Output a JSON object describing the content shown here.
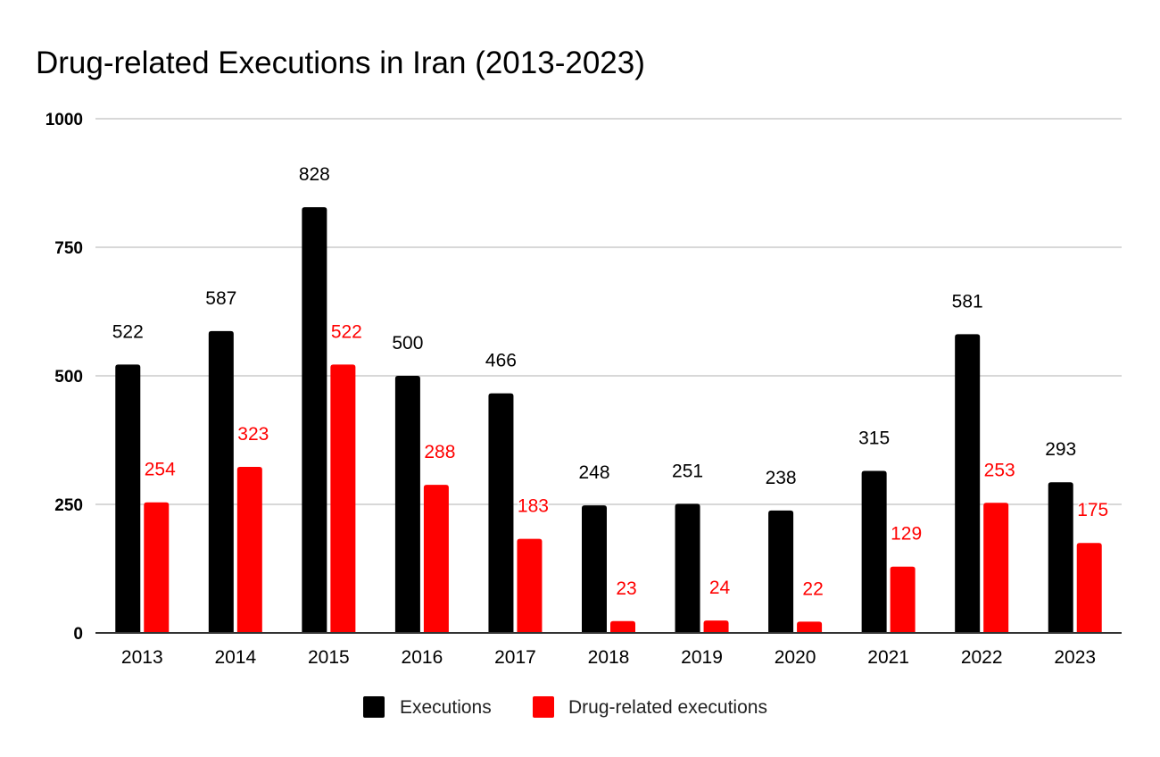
{
  "chart_data": {
    "type": "bar",
    "title": "Drug-related Executions in Iran (2013-2023)",
    "xlabel": "",
    "ylabel": "",
    "ylim": [
      0,
      1000
    ],
    "yticks": [
      "0",
      "250",
      "500",
      "750",
      "1000"
    ],
    "ytick_values": [
      0,
      250,
      500,
      750,
      1000
    ],
    "grid": true,
    "legend_position": "bottom",
    "categories": [
      "2013",
      "2014",
      "2015",
      "2016",
      "2017",
      "2018",
      "2019",
      "2020",
      "2021",
      "2022",
      "2023"
    ],
    "series": [
      {
        "name": "Executions",
        "color": "#000000",
        "values": [
          522,
          587,
          828,
          500,
          466,
          248,
          251,
          238,
          315,
          581,
          293
        ]
      },
      {
        "name": "Drug-related executions",
        "color": "#ff0000",
        "values": [
          254,
          323,
          522,
          288,
          183,
          23,
          24,
          22,
          129,
          253,
          175
        ]
      }
    ]
  }
}
